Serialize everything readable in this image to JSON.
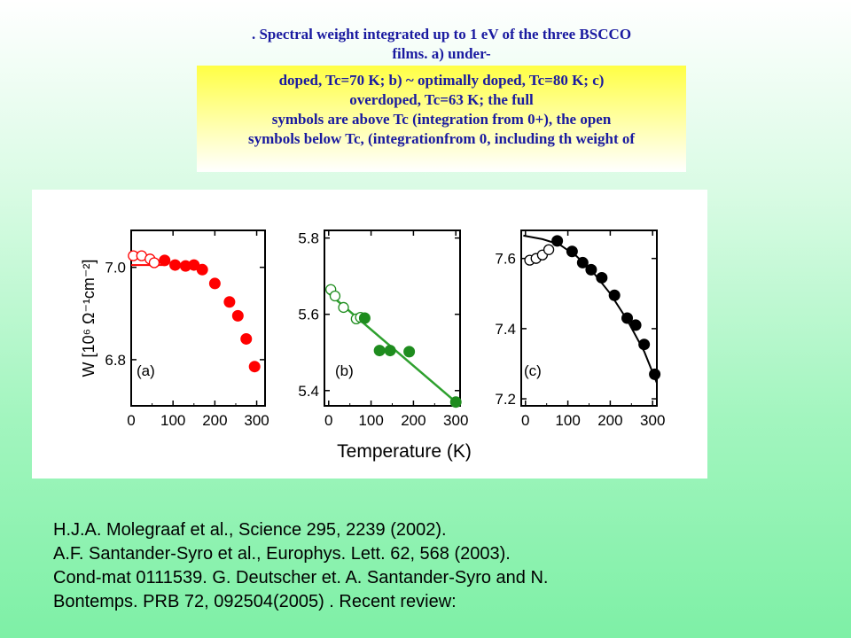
{
  "caption": {
    "top_lines": [
      ". Spectral weight integrated up to 1 eV of the three BSCCO",
      "films. a) under-"
    ],
    "box_lines": [
      "doped, Tc=70 K; b) ~ optimally doped, Tc=80 K; c)",
      "overdoped, Tc=63 K; the full",
      "symbols are above Tc (integration from 0+), the open",
      "symbols below Tc, (integrationfrom 0, including th weight of"
    ],
    "text_color": "#1a1aa0",
    "box_color": "#ffff44"
  },
  "references": [
    " H.J.A. Molegraaf et al., Science 295, 2239 (2002).",
    " A.F. Santander-Syro et al., Europhys. Lett. 62, 568 (2003).",
    "Cond-mat 0111539. G. Deutscher et. A. Santander-Syro and N.",
    "Bontemps. PRB 72, 092504(2005) . Recent review:"
  ],
  "chart_data": [
    {
      "type": "scatter",
      "panel_label": "(a)",
      "ylabel": "W [10⁶ Ω⁻¹cm⁻²]",
      "xlabel": "",
      "color": "#ff0000",
      "xlim": [
        0,
        320
      ],
      "ylim": [
        6.7,
        7.08
      ],
      "xticks": [
        "0",
        "100",
        "200",
        "300"
      ],
      "yticks": [
        {
          "value": 7.0,
          "label": "7.0"
        },
        {
          "value": 6.8,
          "label": "6.8"
        }
      ],
      "open_points": [
        [
          5,
          7.025
        ],
        [
          25,
          7.025
        ],
        [
          45,
          7.018
        ],
        [
          55,
          7.01
        ]
      ],
      "filled_points": [
        [
          80,
          7.015
        ],
        [
          105,
          7.005
        ],
        [
          130,
          7.003
        ],
        [
          150,
          7.005
        ],
        [
          170,
          6.995
        ],
        [
          200,
          6.965
        ],
        [
          235,
          6.925
        ],
        [
          255,
          6.895
        ],
        [
          275,
          6.845
        ],
        [
          295,
          6.785
        ]
      ],
      "reference_line": {
        "x": [
          0,
          80
        ],
        "y": 7.005
      }
    },
    {
      "type": "scatter",
      "panel_label": "(b)",
      "xlabel": "",
      "color": "#1e8c1e",
      "line_color": "#2ea02e",
      "xlim": [
        -10,
        310
      ],
      "ylim": [
        5.36,
        5.82
      ],
      "xticks": [
        "0",
        "100",
        "200",
        "300"
      ],
      "yticks": [
        {
          "value": 5.8,
          "label": "5.8"
        },
        {
          "value": 5.6,
          "label": "5.6"
        },
        {
          "value": 5.4,
          "label": "5.4"
        }
      ],
      "open_points": [
        [
          5,
          5.665
        ],
        [
          15,
          5.648
        ],
        [
          35,
          5.618
        ],
        [
          65,
          5.588
        ],
        [
          75,
          5.592
        ]
      ],
      "filled_points": [
        [
          85,
          5.59
        ],
        [
          120,
          5.505
        ],
        [
          145,
          5.505
        ],
        [
          190,
          5.502
        ],
        [
          300,
          5.37
        ]
      ],
      "fit_line": {
        "x": [
          0,
          300
        ],
        "y": [
          5.655,
          5.37
        ]
      }
    },
    {
      "type": "scatter",
      "panel_label": "(c)",
      "xlabel": "",
      "color": "#000000",
      "xlim": [
        -10,
        310
      ],
      "ylim": [
        7.18,
        7.68
      ],
      "xticks": [
        "0",
        "100",
        "200",
        "300"
      ],
      "yticks": [
        {
          "value": 7.6,
          "label": "7.6"
        },
        {
          "value": 7.4,
          "label": "7.4"
        },
        {
          "value": 7.2,
          "label": "7.2"
        }
      ],
      "open_points": [
        [
          10,
          7.595
        ],
        [
          25,
          7.6
        ],
        [
          40,
          7.61
        ],
        [
          55,
          7.625
        ]
      ],
      "filled_points": [
        [
          75,
          7.65
        ],
        [
          110,
          7.62
        ],
        [
          135,
          7.588
        ],
        [
          155,
          7.568
        ],
        [
          180,
          7.545
        ],
        [
          210,
          7.495
        ],
        [
          240,
          7.43
        ],
        [
          260,
          7.41
        ],
        [
          280,
          7.355
        ],
        [
          305,
          7.27
        ]
      ],
      "fit_curve": {
        "x": [
          -5,
          40,
          80,
          120,
          160,
          200,
          240,
          280,
          310
        ],
        "y": [
          7.665,
          7.655,
          7.64,
          7.607,
          7.56,
          7.5,
          7.425,
          7.335,
          7.245
        ]
      }
    }
  ],
  "shared_xlabel": "Temperature (K)"
}
